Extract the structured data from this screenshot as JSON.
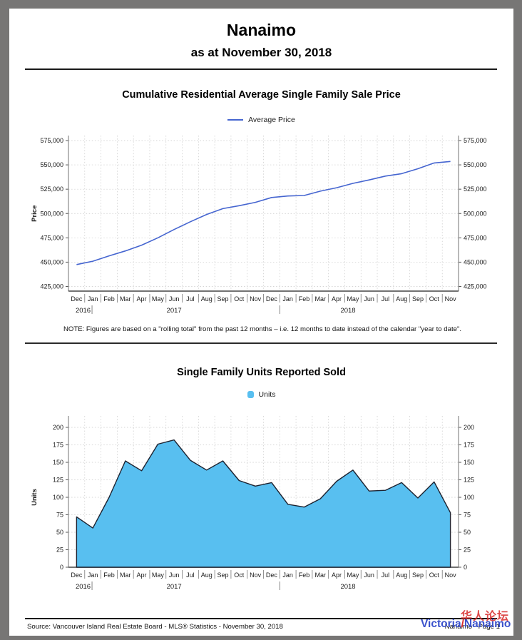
{
  "page": {
    "title": "Nanaimo",
    "subtitle": "as at November 30, 2018"
  },
  "note": "NOTE:  Figures are based on a \"rolling total\" from the past 12 months – i.e. 12 months to date instead of the calendar \"year to date\".",
  "footer": {
    "source": "Source: Vancouver Island Real Estate Board - MLS® Statistics - November 30, 2018",
    "page_label": "Nanaimo - Page 1",
    "watermark_cn": "华人论坛",
    "watermark_victoria": "Victoria",
    "watermark_slash": "/",
    "watermark_nanaimo": "Nanaimo"
  },
  "chart_data": [
    {
      "type": "line",
      "title": "Cumulative Residential Average Single Family Sale Price",
      "legend": "Average Price",
      "ylabel": "Price",
      "xlabel": "",
      "line_color": "#4565d0",
      "grid": true,
      "legend_position": "top",
      "categories": [
        "Dec",
        "Jan",
        "Feb",
        "Mar",
        "Apr",
        "May",
        "Jun",
        "Jul",
        "Aug",
        "Sep",
        "Oct",
        "Nov",
        "Dec",
        "Jan",
        "Feb",
        "Mar",
        "Apr",
        "May",
        "Jun",
        "Jul",
        "Aug",
        "Sep",
        "Oct",
        "Nov"
      ],
      "year_labels": [
        "2016",
        "2017",
        "2018"
      ],
      "values": [
        447500,
        451000,
        456500,
        461500,
        467500,
        475000,
        483500,
        491500,
        499000,
        505000,
        508000,
        511500,
        516500,
        518000,
        518500,
        523000,
        526500,
        531000,
        534500,
        538500,
        541000,
        546000,
        552000,
        553500
      ],
      "ylim": [
        425000,
        575000
      ],
      "ytick_step": 25000,
      "tick_format": "comma"
    },
    {
      "type": "area",
      "title": "Single Family Units Reported Sold",
      "legend": "Units",
      "ylabel": "Units",
      "xlabel": "",
      "fill_color": "#58bff0",
      "outline_color": "#1c2230",
      "grid": true,
      "legend_position": "top",
      "categories": [
        "Dec",
        "Jan",
        "Feb",
        "Mar",
        "Apr",
        "May",
        "Jun",
        "Jul",
        "Aug",
        "Sep",
        "Oct",
        "Nov",
        "Dec",
        "Jan",
        "Feb",
        "Mar",
        "Apr",
        "May",
        "Jun",
        "Jul",
        "Aug",
        "Sep",
        "Oct",
        "Nov"
      ],
      "year_labels": [
        "2016",
        "2017",
        "2018"
      ],
      "values": [
        72,
        56,
        100,
        152,
        138,
        176,
        182,
        153,
        139,
        152,
        124,
        116,
        121,
        90,
        86,
        98,
        123,
        139,
        109,
        110,
        121,
        99,
        122,
        78
      ],
      "ylim": [
        0,
        200
      ],
      "ytick_step": 25,
      "tick_format": "plain"
    }
  ]
}
